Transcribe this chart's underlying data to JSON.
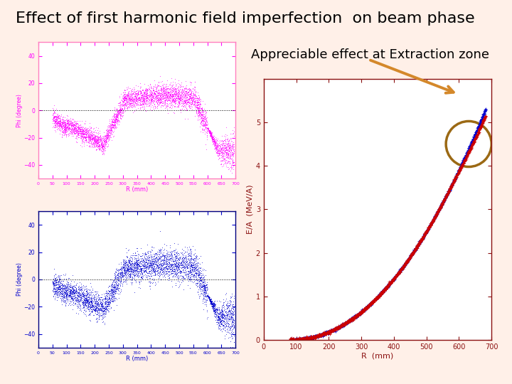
{
  "title": "Effect of first harmonic field imperfection  on beam phase",
  "annotation_text": "Appreciable effect at Extraction zone",
  "bg_color": "#FFF0E8",
  "plot1_border_color": "#FF80C0",
  "plot2_border_color": "#000080",
  "plot3_border_color": "#8B1010",
  "magenta_color": "#FF00FF",
  "blue_color": "#0000CC",
  "red_color": "#CC0000",
  "circle_color": "#9B6914",
  "arrow_color": "#D4882A",
  "title_fontsize": 16,
  "annotation_fontsize": 13,
  "ylim1": [
    -50,
    50
  ],
  "ylim2": [
    -50,
    50
  ],
  "ylim3": [
    0,
    6
  ],
  "xlim": [
    0,
    700
  ]
}
